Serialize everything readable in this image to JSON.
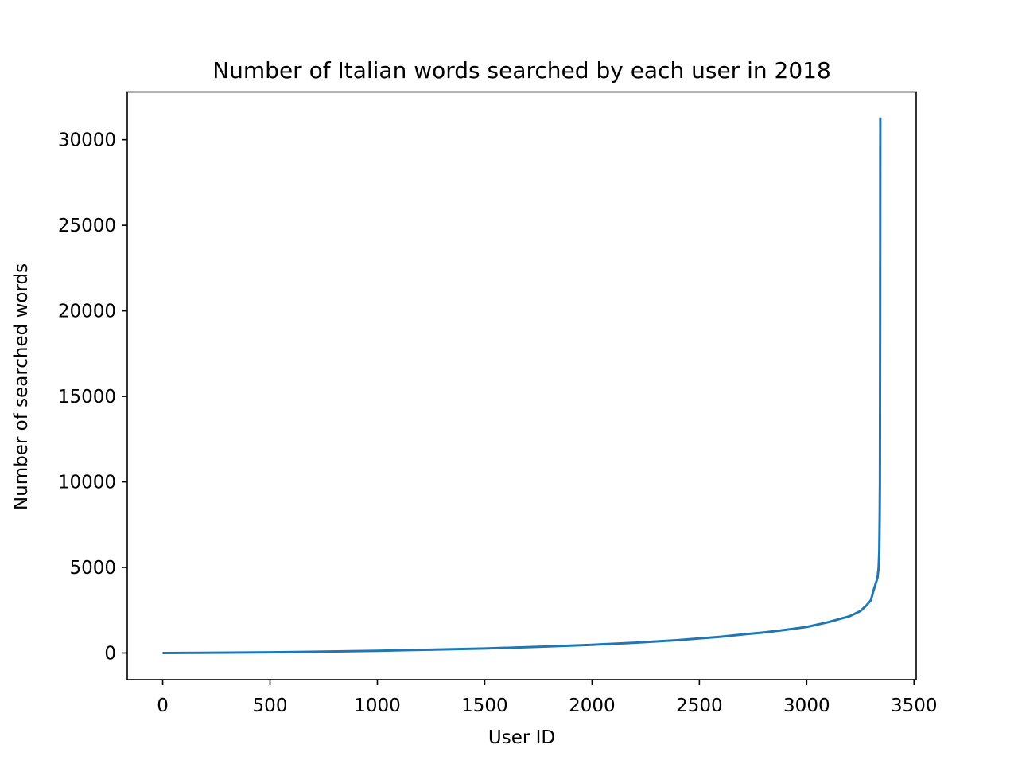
{
  "chart_data": {
    "type": "line",
    "title": "Number of Italian words searched by each user in 2018",
    "xlabel": "User ID",
    "ylabel": "Number of searched words",
    "xlim": [
      -165,
      3510
    ],
    "ylim": [
      -1560,
      32800
    ],
    "xticks": [
      0,
      500,
      1000,
      1500,
      2000,
      2500,
      3000,
      3500
    ],
    "yticks": [
      0,
      5000,
      10000,
      15000,
      20000,
      25000,
      30000
    ],
    "grid": false,
    "series": [
      {
        "color": "#1f77b4",
        "x": [
          0,
          250,
          500,
          750,
          1000,
          1250,
          1500,
          1750,
          2000,
          2200,
          2400,
          2600,
          2700,
          2800,
          2900,
          3000,
          3100,
          3200,
          3250,
          3280,
          3300,
          3310,
          3320,
          3330,
          3335,
          3338,
          3340,
          3341,
          3342,
          3343
        ],
        "y": [
          0,
          15,
          40,
          80,
          130,
          190,
          260,
          360,
          480,
          600,
          750,
          950,
          1080,
          1200,
          1350,
          1520,
          1800,
          2150,
          2450,
          2800,
          3100,
          3600,
          4000,
          4400,
          5000,
          6000,
          8000,
          10000,
          20000,
          31300
        ]
      }
    ]
  }
}
